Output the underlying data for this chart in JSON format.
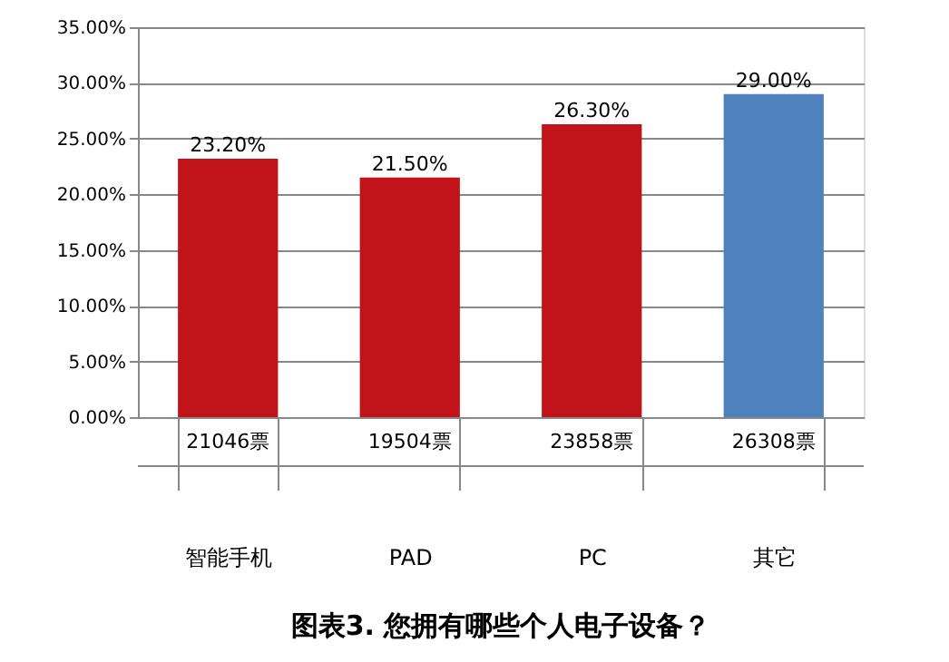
{
  "chart_data": {
    "type": "bar",
    "title": "图表3. 您拥有哪些个人电子设备？",
    "categories": [
      "智能手机",
      "PAD",
      "PC",
      "其它"
    ],
    "values": [
      23.2,
      21.5,
      26.3,
      29.0
    ],
    "colors": [
      "#c0141a",
      "#c0141a",
      "#c0141a",
      "#4f81bd"
    ],
    "value_labels": [
      "23.20%",
      "21.50%",
      "26.30%",
      "29.00%"
    ],
    "annotations": [
      "21046票",
      "19504票",
      "23858票",
      "26308票"
    ],
    "ylim": [
      0,
      35
    ],
    "yticks": [
      {
        "value": 0,
        "label": "0.00%"
      },
      {
        "value": 5,
        "label": "5.00%"
      },
      {
        "value": 10,
        "label": "10.00%"
      },
      {
        "value": 15,
        "label": "15.00%"
      },
      {
        "value": 20,
        "label": "20.00%"
      },
      {
        "value": 25,
        "label": "25.00%"
      },
      {
        "value": 30,
        "label": "30.00%"
      },
      {
        "value": 35,
        "label": "35.00%"
      }
    ],
    "grid": "y"
  }
}
